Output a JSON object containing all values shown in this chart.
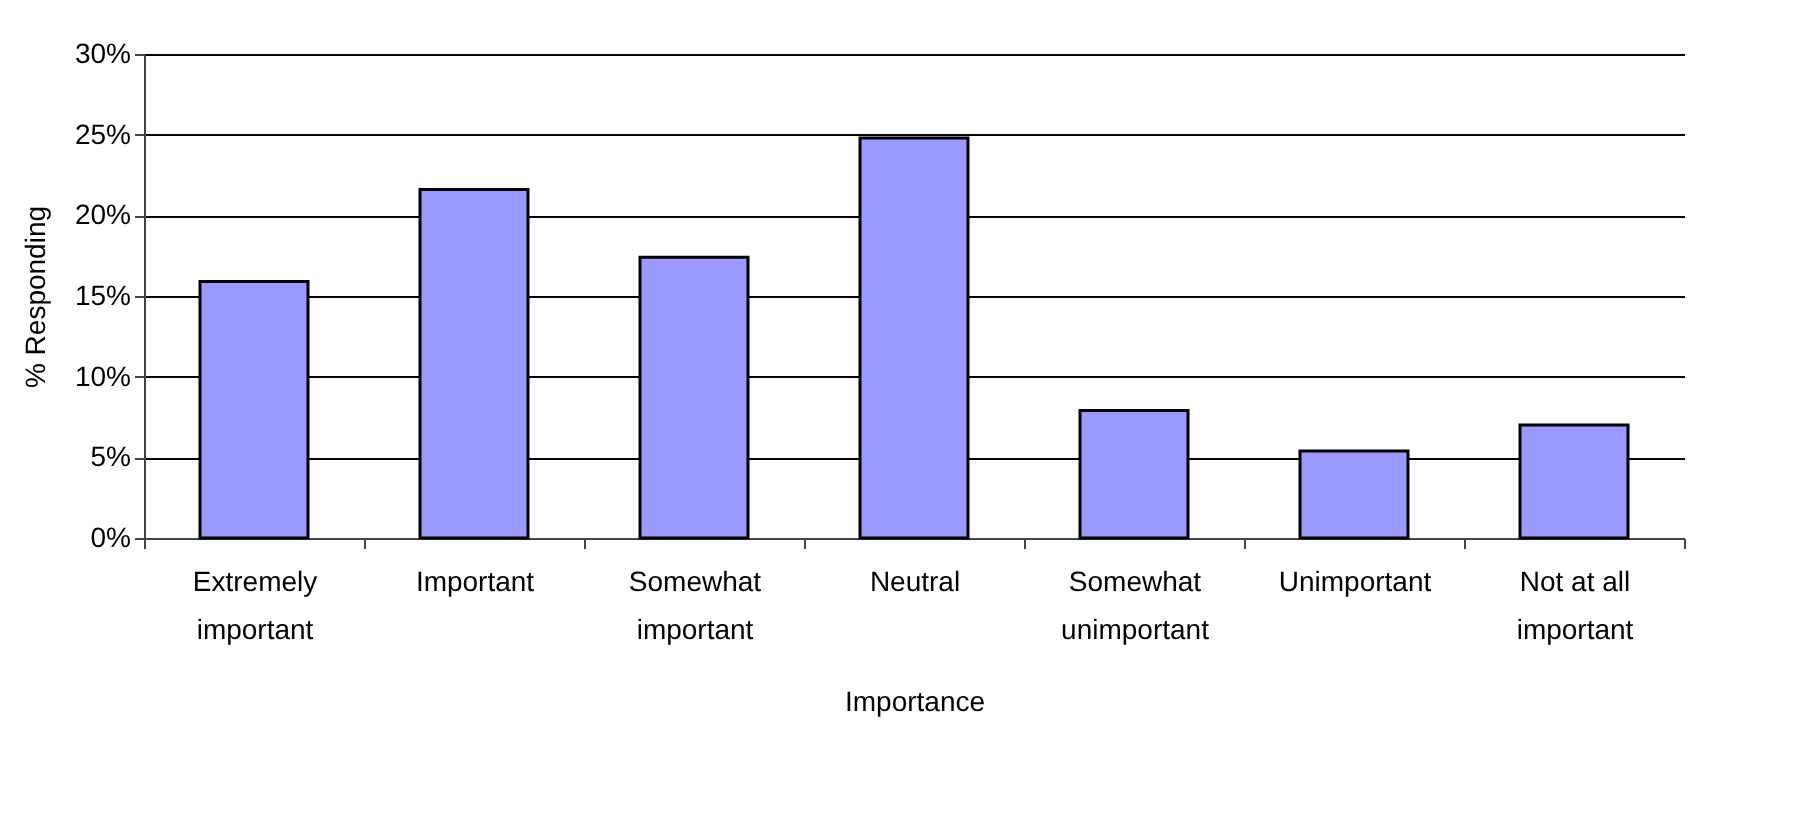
{
  "chart_data": {
    "type": "bar",
    "xlabel": "Importance",
    "ylabel": "% Responding",
    "categories": [
      "Extremely important",
      "Important",
      "Somewhat important",
      "Neutral",
      "Somewhat unimportant",
      "Unimportant",
      "Not at all important"
    ],
    "values": [
      15.9,
      21.6,
      17.4,
      24.8,
      7.9,
      5.4,
      7.0
    ],
    "color": "#9999ff",
    "ylim": [
      0,
      30
    ],
    "yticks": [
      {
        "value": 0,
        "label": "0%"
      },
      {
        "value": 5,
        "label": "5%"
      },
      {
        "value": 10,
        "label": "10%"
      },
      {
        "value": 15,
        "label": "15%"
      },
      {
        "value": 20,
        "label": "20%"
      },
      {
        "value": 25,
        "label": "25%"
      },
      {
        "value": 30,
        "label": "30%"
      }
    ],
    "grid": "y"
  }
}
